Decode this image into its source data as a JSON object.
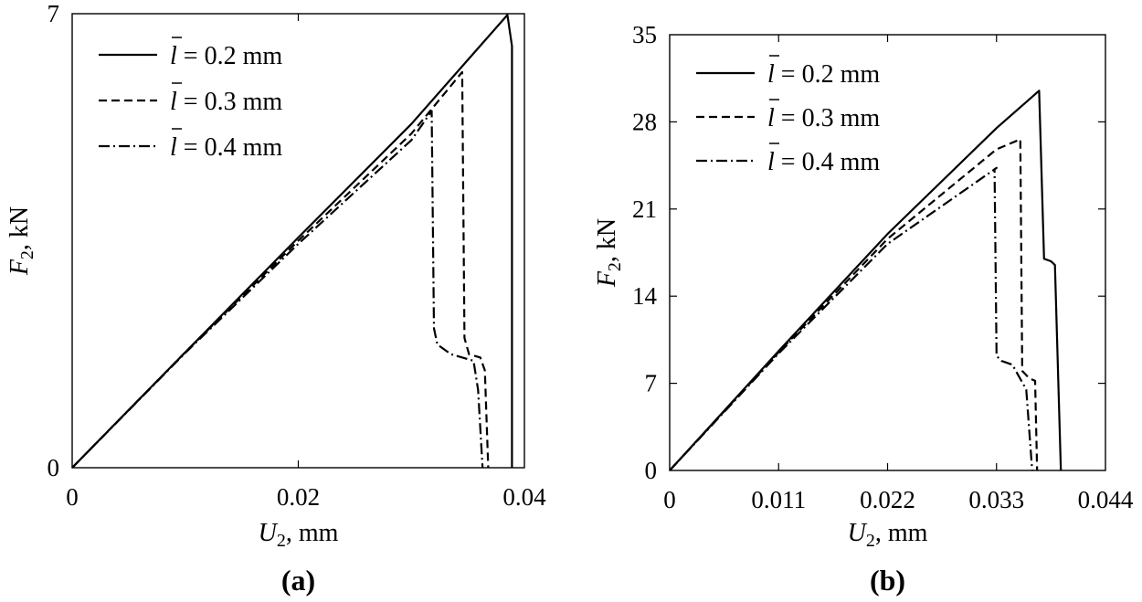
{
  "chart_data": [
    {
      "type": "line",
      "panel_label": "(a)",
      "xlabel": {
        "symbol": "U",
        "subscript": "2",
        "unit": ", mm"
      },
      "ylabel": {
        "symbol": "F",
        "subscript": "2",
        "unit": ", kN"
      },
      "xlim": [
        0,
        0.04
      ],
      "ylim": [
        0,
        7
      ],
      "xticks": [
        0,
        0.02,
        0.04
      ],
      "xtick_labels": [
        "0",
        "0.02",
        "0.04"
      ],
      "yticks": [
        0,
        7
      ],
      "ytick_labels": [
        "0",
        "7"
      ],
      "grid": false,
      "legend_position": "top-left",
      "series": [
        {
          "name": "l̄ = 0.2 mm",
          "legend_symbol": "l",
          "legend_text": " = 0.2 mm",
          "style": "solid",
          "x": [
            0,
            0.01,
            0.02,
            0.03,
            0.0385,
            0.0389,
            0.0389
          ],
          "y": [
            0,
            1.78,
            3.55,
            5.3,
            6.98,
            6.5,
            0
          ]
        },
        {
          "name": "l̄ = 0.3 mm",
          "legend_symbol": "l",
          "legend_text": " = 0.3 mm",
          "style": "dashed",
          "x": [
            0,
            0.01,
            0.02,
            0.03,
            0.0345,
            0.0347,
            0.0351,
            0.0361,
            0.0365,
            0.0368
          ],
          "y": [
            0,
            1.78,
            3.5,
            5.15,
            6.1,
            2.0,
            1.75,
            1.7,
            1.5,
            0
          ]
        },
        {
          "name": "l̄ = 0.4 mm",
          "legend_symbol": "l",
          "legend_text": " = 0.4 mm",
          "style": "dashdot",
          "x": [
            0,
            0.01,
            0.02,
            0.03,
            0.0318,
            0.032,
            0.0323,
            0.0335,
            0.0355,
            0.0359,
            0.0363
          ],
          "y": [
            0,
            1.77,
            3.45,
            5.05,
            5.5,
            2.15,
            1.9,
            1.75,
            1.65,
            1.2,
            0
          ]
        }
      ]
    },
    {
      "type": "line",
      "panel_label": "(b)",
      "xlabel": {
        "symbol": "U",
        "subscript": "2",
        "unit": ", mm"
      },
      "ylabel": {
        "symbol": "F",
        "subscript": "2",
        "unit": ", kN"
      },
      "xlim": [
        0,
        0.044
      ],
      "ylim": [
        0,
        35
      ],
      "xticks": [
        0,
        0.011,
        0.022,
        0.033,
        0.044
      ],
      "xtick_labels": [
        "0",
        "0.011",
        "0.022",
        "0.033",
        "0.044"
      ],
      "yticks": [
        0,
        7,
        14,
        21,
        28,
        35
      ],
      "ytick_labels": [
        "0",
        "7",
        "14",
        "21",
        "28",
        "35"
      ],
      "grid": false,
      "legend_position": "top-left",
      "series": [
        {
          "name": "l̄ = 0.2 mm",
          "legend_symbol": "l",
          "legend_text": " = 0.2 mm",
          "style": "solid",
          "x": [
            0,
            0.011,
            0.022,
            0.033,
            0.0373,
            0.0378,
            0.0385,
            0.0389,
            0.0395
          ],
          "y": [
            0,
            9.6,
            19.0,
            27.5,
            30.5,
            17.0,
            16.8,
            16.5,
            0
          ]
        },
        {
          "name": "l̄ = 0.3 mm",
          "legend_symbol": "l",
          "legend_text": " = 0.3 mm",
          "style": "dashed",
          "x": [
            0,
            0.011,
            0.022,
            0.033,
            0.0354,
            0.0356,
            0.0363,
            0.0369,
            0.0371
          ],
          "y": [
            0,
            9.5,
            18.6,
            25.8,
            26.6,
            8.0,
            7.4,
            7.2,
            0
          ]
        },
        {
          "name": "l̄ = 0.4 mm",
          "legend_symbol": "l",
          "legend_text": " = 0.4 mm",
          "style": "dashdot",
          "x": [
            0,
            0.011,
            0.022,
            0.033,
            0.0328,
            0.033,
            0.0335,
            0.0346,
            0.036,
            0.0366
          ],
          "y": [
            0,
            9.4,
            18.2,
            24.3,
            24.2,
            9.2,
            8.8,
            8.5,
            6.5,
            0
          ]
        }
      ]
    }
  ]
}
